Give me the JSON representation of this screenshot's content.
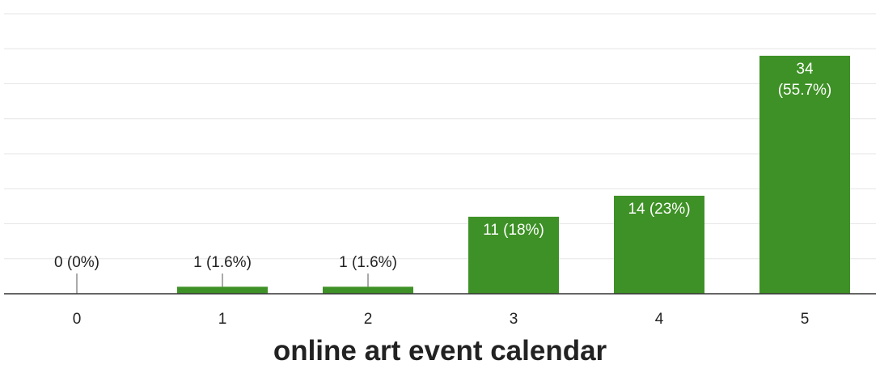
{
  "chart_data": {
    "type": "bar",
    "xlabel": "online art event calendar",
    "categories": [
      "0",
      "1",
      "2",
      "3",
      "4",
      "5"
    ],
    "values": [
      0,
      1,
      1,
      11,
      14,
      34
    ],
    "data_labels": [
      "0 (0%)",
      "1 (1.6%)",
      "1 (1.6%)",
      "11 (18%)",
      "14 (23%)",
      "34 (55.7%)"
    ],
    "ylim": [
      0,
      40
    ],
    "grid": true,
    "bar_color": "#3e9126"
  }
}
